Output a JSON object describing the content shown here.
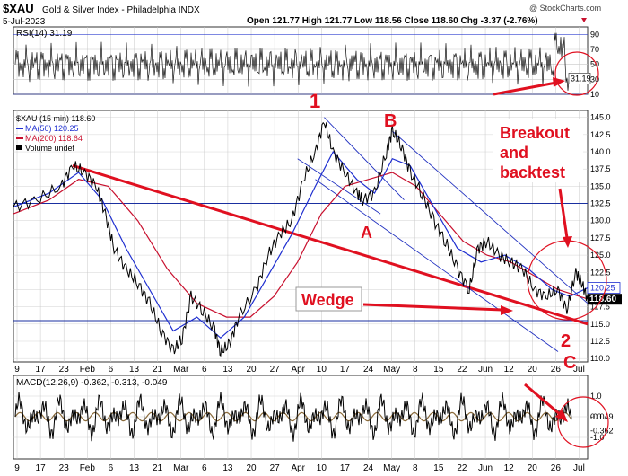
{
  "header": {
    "symbol": "$XAU",
    "name": "Gold & Silver Index - Philadelphia INDX",
    "date": "5-Jul-2023",
    "watermark": "@ StockCharts.com",
    "ohlc": "Open 121.77  High 121.77  Low 118.56  Close 118.60  Chg -3.37 (-2.76%)"
  },
  "colors": {
    "price": "#000000",
    "ma50": "#1f2fd0",
    "ma200": "#c8102e",
    "annotation": "#e01020",
    "trendline": "#2030c0",
    "panel_bg": "#ffffff",
    "grid": "#c8c8c8"
  },
  "chart_data": [
    {
      "type": "line",
      "panel": "rsi",
      "legend": "RSI(14) 31.19",
      "ylim": [
        10,
        100
      ],
      "ticks": [
        "10",
        "30",
        "50",
        "70",
        "90"
      ],
      "last_value": "31.19",
      "reference_lines": [
        30,
        70,
        90
      ]
    },
    {
      "type": "line",
      "panel": "price",
      "legend": [
        "$XAU (15 min) 118.60",
        "MA(50) 120.25",
        "MA(200) 118.64",
        "Volume undef"
      ],
      "ylim": [
        109.5,
        146
      ],
      "ticks": [
        "110.0",
        "112.5",
        "115.0",
        "117.5",
        "120.0",
        "122.5",
        "125.0",
        "127.5",
        "130.0",
        "132.5",
        "135.0",
        "137.5",
        "140.0",
        "142.5",
        "145.0"
      ],
      "last_value": "118.60",
      "ma50_value": "120.25",
      "price_series": [
        {
          "x": 0,
          "y": 132
        },
        {
          "x": 4,
          "y": 133
        },
        {
          "x": 8,
          "y": 135
        },
        {
          "x": 10,
          "y": 138
        },
        {
          "x": 12,
          "y": 137
        },
        {
          "x": 14,
          "y": 135
        },
        {
          "x": 15.5,
          "y": 131
        },
        {
          "x": 17,
          "y": 126
        },
        {
          "x": 19,
          "y": 123
        },
        {
          "x": 21,
          "y": 121
        },
        {
          "x": 23,
          "y": 118
        },
        {
          "x": 25,
          "y": 114
        },
        {
          "x": 27,
          "y": 111
        },
        {
          "x": 28.5,
          "y": 113
        },
        {
          "x": 30,
          "y": 119
        },
        {
          "x": 32,
          "y": 117
        },
        {
          "x": 34,
          "y": 114
        },
        {
          "x": 35,
          "y": 111
        },
        {
          "x": 36.5,
          "y": 112
        },
        {
          "x": 38,
          "y": 116
        },
        {
          "x": 41,
          "y": 120
        },
        {
          "x": 43,
          "y": 125
        },
        {
          "x": 45,
          "y": 128
        },
        {
          "x": 47,
          "y": 130
        },
        {
          "x": 49,
          "y": 136
        },
        {
          "x": 51,
          "y": 140
        },
        {
          "x": 52.5,
          "y": 144.5
        },
        {
          "x": 54,
          "y": 140
        },
        {
          "x": 56,
          "y": 137
        },
        {
          "x": 58,
          "y": 134
        },
        {
          "x": 59,
          "y": 133
        },
        {
          "x": 61,
          "y": 134
        },
        {
          "x": 63,
          "y": 140
        },
        {
          "x": 64,
          "y": 143
        },
        {
          "x": 65.5,
          "y": 141
        },
        {
          "x": 67,
          "y": 137
        },
        {
          "x": 69,
          "y": 134
        },
        {
          "x": 71,
          "y": 130
        },
        {
          "x": 73,
          "y": 127
        },
        {
          "x": 75,
          "y": 123
        },
        {
          "x": 77,
          "y": 120
        },
        {
          "x": 78.5,
          "y": 126
        },
        {
          "x": 80,
          "y": 127
        },
        {
          "x": 82,
          "y": 125
        },
        {
          "x": 84,
          "y": 124
        },
        {
          "x": 86,
          "y": 123
        },
        {
          "x": 88,
          "y": 120
        },
        {
          "x": 90,
          "y": 119
        },
        {
          "x": 92,
          "y": 120
        },
        {
          "x": 93.5,
          "y": 117
        },
        {
          "x": 95,
          "y": 122.5
        },
        {
          "x": 96,
          "y": 121
        },
        {
          "x": 97,
          "y": 118.6
        }
      ],
      "ma50_series": [
        {
          "x": 0,
          "y": 132
        },
        {
          "x": 6,
          "y": 134
        },
        {
          "x": 11,
          "y": 137
        },
        {
          "x": 15,
          "y": 133
        },
        {
          "x": 19,
          "y": 126
        },
        {
          "x": 23,
          "y": 120
        },
        {
          "x": 27,
          "y": 114
        },
        {
          "x": 31,
          "y": 116
        },
        {
          "x": 35,
          "y": 113
        },
        {
          "x": 39,
          "y": 116
        },
        {
          "x": 43,
          "y": 122
        },
        {
          "x": 47,
          "y": 128
        },
        {
          "x": 51,
          "y": 135
        },
        {
          "x": 54,
          "y": 140
        },
        {
          "x": 58,
          "y": 136
        },
        {
          "x": 61,
          "y": 134
        },
        {
          "x": 64,
          "y": 139
        },
        {
          "x": 67,
          "y": 138
        },
        {
          "x": 71,
          "y": 132
        },
        {
          "x": 75,
          "y": 126
        },
        {
          "x": 79,
          "y": 124
        },
        {
          "x": 83,
          "y": 125
        },
        {
          "x": 87,
          "y": 123
        },
        {
          "x": 91,
          "y": 120
        },
        {
          "x": 94,
          "y": 119
        },
        {
          "x": 97,
          "y": 120.25
        }
      ],
      "ma200_series": [
        {
          "x": 0,
          "y": 131
        },
        {
          "x": 6,
          "y": 133
        },
        {
          "x": 11,
          "y": 136
        },
        {
          "x": 16,
          "y": 135
        },
        {
          "x": 21,
          "y": 130
        },
        {
          "x": 26,
          "y": 123
        },
        {
          "x": 31,
          "y": 118
        },
        {
          "x": 36,
          "y": 116
        },
        {
          "x": 40,
          "y": 116
        },
        {
          "x": 44,
          "y": 119
        },
        {
          "x": 48,
          "y": 124
        },
        {
          "x": 52,
          "y": 131
        },
        {
          "x": 56,
          "y": 135
        },
        {
          "x": 60,
          "y": 136
        },
        {
          "x": 64,
          "y": 137
        },
        {
          "x": 68,
          "y": 135
        },
        {
          "x": 72,
          "y": 131
        },
        {
          "x": 76,
          "y": 127
        },
        {
          "x": 80,
          "y": 125
        },
        {
          "x": 84,
          "y": 124
        },
        {
          "x": 88,
          "y": 122
        },
        {
          "x": 92,
          "y": 120
        },
        {
          "x": 97,
          "y": 118.64
        }
      ],
      "horizontal_lines": [
        132.5,
        115.5
      ],
      "annotations": [
        "1",
        "B",
        "A",
        "Wedge",
        "Breakout",
        "and",
        "backtest",
        "2",
        "C"
      ]
    },
    {
      "type": "line",
      "panel": "macd",
      "legend": "MACD(12,26,9) -0.362, -0.313, -0.049",
      "ylim": [
        -2,
        2
      ],
      "ticks": [
        "-1.0",
        "0.0",
        "1.0"
      ],
      "last_values": [
        "-0.362",
        "-0.049"
      ]
    }
  ],
  "x_axis": {
    "labels": [
      "9",
      "17",
      "23",
      "Feb",
      "6",
      "13",
      "21",
      "Mar",
      "6",
      "13",
      "20",
      "27",
      "Apr",
      "10",
      "17",
      "24",
      "May",
      "8",
      "15",
      "22",
      "Jun",
      "12",
      "20",
      "26",
      "Jul"
    ]
  }
}
